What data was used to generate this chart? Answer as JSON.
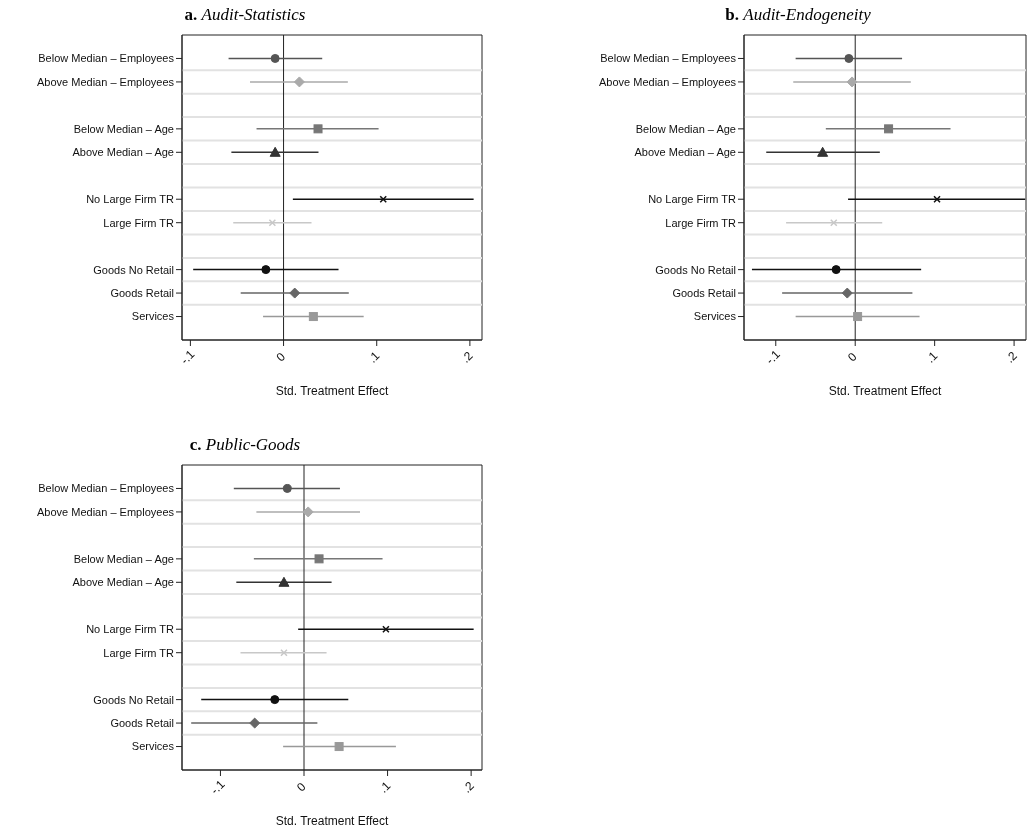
{
  "chart_data": [
    {
      "type": "scatter",
      "orientation": "horizontal",
      "title": "a. Audit-Statistics",
      "xlabel": "Std. Treatment Effect",
      "categories": [
        "Below Median – Employees",
        "Above Median – Employees",
        null,
        "Below Median – Age",
        "Above Median – Age",
        null,
        "No Large Firm TR",
        "Large Firm TR",
        null,
        "Goods No Retail",
        "Goods Retail",
        "Services"
      ],
      "xlim": [
        -0.109,
        0.213
      ],
      "xticks": [
        {
          "value": -0.1,
          "label": "-.1"
        },
        {
          "value": 0,
          "label": "0"
        },
        {
          "value": 0.1,
          "label": ".1"
        },
        {
          "value": 0.2,
          "label": ".2"
        }
      ],
      "grid": "y",
      "ref_lines": [
        {
          "axis": "x",
          "value": 0
        }
      ],
      "series": [
        {
          "color": "#555555",
          "marker": "circle",
          "values": [
            -0.009,
            null,
            null,
            null,
            null,
            null,
            null,
            null,
            null,
            null,
            null,
            null
          ],
          "errors": [
            [
              -0.059,
              0.0415
            ],
            null,
            null,
            null,
            null,
            null,
            null,
            null,
            null,
            null,
            null,
            null
          ]
        },
        {
          "color": "#aaaaaa",
          "marker": "diamond",
          "values": [
            null,
            0.017,
            null,
            null,
            null,
            null,
            null,
            null,
            null,
            null,
            null,
            null
          ],
          "errors": [
            null,
            [
              -0.036,
              0.069
            ],
            null,
            null,
            null,
            null,
            null,
            null,
            null,
            null,
            null,
            null
          ]
        },
        {
          "color": "#777777",
          "marker": "square",
          "values": [
            null,
            null,
            null,
            0.037,
            null,
            null,
            null,
            null,
            null,
            null,
            null,
            null
          ],
          "errors": [
            null,
            null,
            null,
            [
              -0.029,
              0.102
            ],
            null,
            null,
            null,
            null,
            null,
            null,
            null,
            null
          ]
        },
        {
          "color": "#333333",
          "marker": "triangle",
          "values": [
            null,
            null,
            null,
            null,
            -0.009,
            null,
            null,
            null,
            null,
            null,
            null,
            null
          ],
          "errors": [
            null,
            null,
            null,
            null,
            [
              -0.056,
              0.0375
            ],
            null,
            null,
            null,
            null,
            null,
            null,
            null
          ]
        },
        {
          "color": "#111111",
          "marker": "cross",
          "values": [
            null,
            null,
            null,
            null,
            null,
            null,
            0.107,
            null,
            null,
            null,
            null,
            null
          ],
          "errors": [
            null,
            null,
            null,
            null,
            null,
            null,
            [
              0.01,
              0.204
            ],
            null,
            null,
            null,
            null,
            null
          ]
        },
        {
          "color": "#c8c8c8",
          "marker": "cross",
          "values": [
            null,
            null,
            null,
            null,
            null,
            null,
            null,
            -0.012,
            null,
            null,
            null,
            null
          ],
          "errors": [
            null,
            null,
            null,
            null,
            null,
            null,
            null,
            [
              -0.054,
              0.03
            ],
            null,
            null,
            null,
            null
          ]
        },
        {
          "color": "#111111",
          "marker": "circle",
          "values": [
            null,
            null,
            null,
            null,
            null,
            null,
            null,
            null,
            null,
            -0.019,
            null,
            null
          ],
          "errors": [
            null,
            null,
            null,
            null,
            null,
            null,
            null,
            null,
            null,
            [
              -0.097,
              0.059
            ],
            null,
            null
          ]
        },
        {
          "color": "#666666",
          "marker": "diamond",
          "values": [
            null,
            null,
            null,
            null,
            null,
            null,
            null,
            null,
            null,
            null,
            0.012,
            null
          ],
          "errors": [
            null,
            null,
            null,
            null,
            null,
            null,
            null,
            null,
            null,
            null,
            [
              -0.046,
              0.07
            ],
            null
          ]
        },
        {
          "color": "#999999",
          "marker": "square",
          "values": [
            null,
            null,
            null,
            null,
            null,
            null,
            null,
            null,
            null,
            null,
            null,
            0.032
          ],
          "errors": [
            null,
            null,
            null,
            null,
            null,
            null,
            null,
            null,
            null,
            null,
            null,
            [
              -0.022,
              0.086
            ]
          ]
        }
      ]
    },
    {
      "type": "scatter",
      "orientation": "horizontal",
      "title": "b. Audit-Endogeneity",
      "xlabel": "Std. Treatment Effect",
      "categories": [
        "Below Median – Employees",
        "Above Median – Employees",
        null,
        "Below Median – Age",
        "Above Median – Age",
        null,
        "No Large Firm TR",
        "Large Firm TR",
        null,
        "Goods No Retail",
        "Goods Retail",
        "Services"
      ],
      "xlim": [
        -0.14,
        0.215
      ],
      "xticks": [
        {
          "value": -0.1,
          "label": "-.1"
        },
        {
          "value": 0,
          "label": "0"
        },
        {
          "value": 0.1,
          "label": ".1"
        },
        {
          "value": 0.2,
          "label": ".2"
        }
      ],
      "grid": "y",
      "ref_lines": [
        {
          "axis": "x",
          "value": 0
        }
      ],
      "series": [
        {
          "color": "#555555",
          "marker": "circle",
          "values": [
            -0.008,
            null,
            null,
            null,
            null,
            null,
            null,
            null,
            null,
            null,
            null,
            null
          ],
          "errors": [
            [
              -0.075,
              0.059
            ],
            null,
            null,
            null,
            null,
            null,
            null,
            null,
            null,
            null,
            null,
            null
          ]
        },
        {
          "color": "#aaaaaa",
          "marker": "diamond",
          "values": [
            null,
            -0.004,
            null,
            null,
            null,
            null,
            null,
            null,
            null,
            null,
            null,
            null
          ],
          "errors": [
            null,
            [
              -0.078,
              0.07
            ],
            null,
            null,
            null,
            null,
            null,
            null,
            null,
            null,
            null,
            null
          ]
        },
        {
          "color": "#777777",
          "marker": "square",
          "values": [
            null,
            null,
            null,
            0.042,
            null,
            null,
            null,
            null,
            null,
            null,
            null,
            null
          ],
          "errors": [
            null,
            null,
            null,
            [
              -0.037,
              0.12
            ],
            null,
            null,
            null,
            null,
            null,
            null,
            null,
            null
          ]
        },
        {
          "color": "#333333",
          "marker": "triangle",
          "values": [
            null,
            null,
            null,
            null,
            -0.041,
            null,
            null,
            null,
            null,
            null,
            null,
            null
          ],
          "errors": [
            null,
            null,
            null,
            null,
            [
              -0.112,
              0.031
            ],
            null,
            null,
            null,
            null,
            null,
            null,
            null
          ]
        },
        {
          "color": "#111111",
          "marker": "cross",
          "values": [
            null,
            null,
            null,
            null,
            null,
            null,
            0.103,
            null,
            null,
            null,
            null,
            null
          ],
          "errors": [
            null,
            null,
            null,
            null,
            null,
            null,
            [
              -0.009,
              0.214
            ],
            null,
            null,
            null,
            null,
            null
          ]
        },
        {
          "color": "#c8c8c8",
          "marker": "cross",
          "values": [
            null,
            null,
            null,
            null,
            null,
            null,
            null,
            -0.027,
            null,
            null,
            null,
            null
          ],
          "errors": [
            null,
            null,
            null,
            null,
            null,
            null,
            null,
            [
              -0.087,
              0.034
            ],
            null,
            null,
            null,
            null
          ]
        },
        {
          "color": "#111111",
          "marker": "circle",
          "values": [
            null,
            null,
            null,
            null,
            null,
            null,
            null,
            null,
            null,
            -0.024,
            null,
            null
          ],
          "errors": [
            null,
            null,
            null,
            null,
            null,
            null,
            null,
            null,
            null,
            [
              -0.13,
              0.083
            ],
            null,
            null
          ]
        },
        {
          "color": "#666666",
          "marker": "diamond",
          "values": [
            null,
            null,
            null,
            null,
            null,
            null,
            null,
            null,
            null,
            null,
            -0.01,
            null
          ],
          "errors": [
            null,
            null,
            null,
            null,
            null,
            null,
            null,
            null,
            null,
            null,
            [
              -0.092,
              0.072
            ],
            null
          ]
        },
        {
          "color": "#999999",
          "marker": "square",
          "values": [
            null,
            null,
            null,
            null,
            null,
            null,
            null,
            null,
            null,
            null,
            null,
            0.003
          ],
          "errors": [
            null,
            null,
            null,
            null,
            null,
            null,
            null,
            null,
            null,
            null,
            null,
            [
              -0.075,
              0.081
            ]
          ]
        }
      ]
    },
    {
      "type": "scatter",
      "orientation": "horizontal",
      "title": "c. Public-Goods",
      "xlabel": "Std. Treatment Effect",
      "categories": [
        "Below Median – Employees",
        "Above Median – Employees",
        null,
        "Below Median – Age",
        "Above Median – Age",
        null,
        "No Large Firm TR",
        "Large Firm TR",
        null,
        "Goods No Retail",
        "Goods Retail",
        "Services"
      ],
      "xlim": [
        -0.146,
        0.213
      ],
      "xticks": [
        {
          "value": -0.1,
          "label": "-.1"
        },
        {
          "value": 0,
          "label": "0"
        },
        {
          "value": 0.1,
          "label": ".1"
        },
        {
          "value": 0.2,
          "label": ".2"
        }
      ],
      "grid": "y",
      "ref_lines": [
        {
          "axis": "x",
          "value": 0
        }
      ],
      "series": [
        {
          "color": "#555555",
          "marker": "circle",
          "values": [
            -0.02,
            null,
            null,
            null,
            null,
            null,
            null,
            null,
            null,
            null,
            null,
            null
          ],
          "errors": [
            [
              -0.084,
              0.043
            ],
            null,
            null,
            null,
            null,
            null,
            null,
            null,
            null,
            null,
            null,
            null
          ]
        },
        {
          "color": "#aaaaaa",
          "marker": "diamond",
          "values": [
            null,
            0.005,
            null,
            null,
            null,
            null,
            null,
            null,
            null,
            null,
            null,
            null
          ],
          "errors": [
            null,
            [
              -0.057,
              0.067
            ],
            null,
            null,
            null,
            null,
            null,
            null,
            null,
            null,
            null,
            null
          ]
        },
        {
          "color": "#777777",
          "marker": "square",
          "values": [
            null,
            null,
            null,
            0.018,
            null,
            null,
            null,
            null,
            null,
            null,
            null,
            null
          ],
          "errors": [
            null,
            null,
            null,
            [
              -0.06,
              0.094
            ],
            null,
            null,
            null,
            null,
            null,
            null,
            null,
            null
          ]
        },
        {
          "color": "#333333",
          "marker": "triangle",
          "values": [
            null,
            null,
            null,
            null,
            -0.024,
            null,
            null,
            null,
            null,
            null,
            null,
            null
          ],
          "errors": [
            null,
            null,
            null,
            null,
            [
              -0.081,
              0.033
            ],
            null,
            null,
            null,
            null,
            null,
            null,
            null
          ]
        },
        {
          "color": "#111111",
          "marker": "cross",
          "values": [
            null,
            null,
            null,
            null,
            null,
            null,
            0.098,
            null,
            null,
            null,
            null,
            null
          ],
          "errors": [
            null,
            null,
            null,
            null,
            null,
            null,
            [
              -0.007,
              0.203
            ],
            null,
            null,
            null,
            null,
            null
          ]
        },
        {
          "color": "#c8c8c8",
          "marker": "cross",
          "values": [
            null,
            null,
            null,
            null,
            null,
            null,
            null,
            -0.024,
            null,
            null,
            null,
            null
          ],
          "errors": [
            null,
            null,
            null,
            null,
            null,
            null,
            null,
            [
              -0.076,
              0.027
            ],
            null,
            null,
            null,
            null
          ]
        },
        {
          "color": "#111111",
          "marker": "circle",
          "values": [
            null,
            null,
            null,
            null,
            null,
            null,
            null,
            null,
            null,
            -0.035,
            null,
            null
          ],
          "errors": [
            null,
            null,
            null,
            null,
            null,
            null,
            null,
            null,
            null,
            [
              -0.123,
              0.053
            ],
            null,
            null
          ]
        },
        {
          "color": "#666666",
          "marker": "diamond",
          "values": [
            null,
            null,
            null,
            null,
            null,
            null,
            null,
            null,
            null,
            null,
            -0.059,
            null
          ],
          "errors": [
            null,
            null,
            null,
            null,
            null,
            null,
            null,
            null,
            null,
            null,
            [
              -0.135,
              0.016
            ],
            null
          ]
        },
        {
          "color": "#999999",
          "marker": "square",
          "values": [
            null,
            null,
            null,
            null,
            null,
            null,
            null,
            null,
            null,
            null,
            null,
            0.042
          ],
          "errors": [
            null,
            null,
            null,
            null,
            null,
            null,
            null,
            null,
            null,
            null,
            null,
            [
              -0.025,
              0.11
            ]
          ]
        }
      ]
    }
  ]
}
